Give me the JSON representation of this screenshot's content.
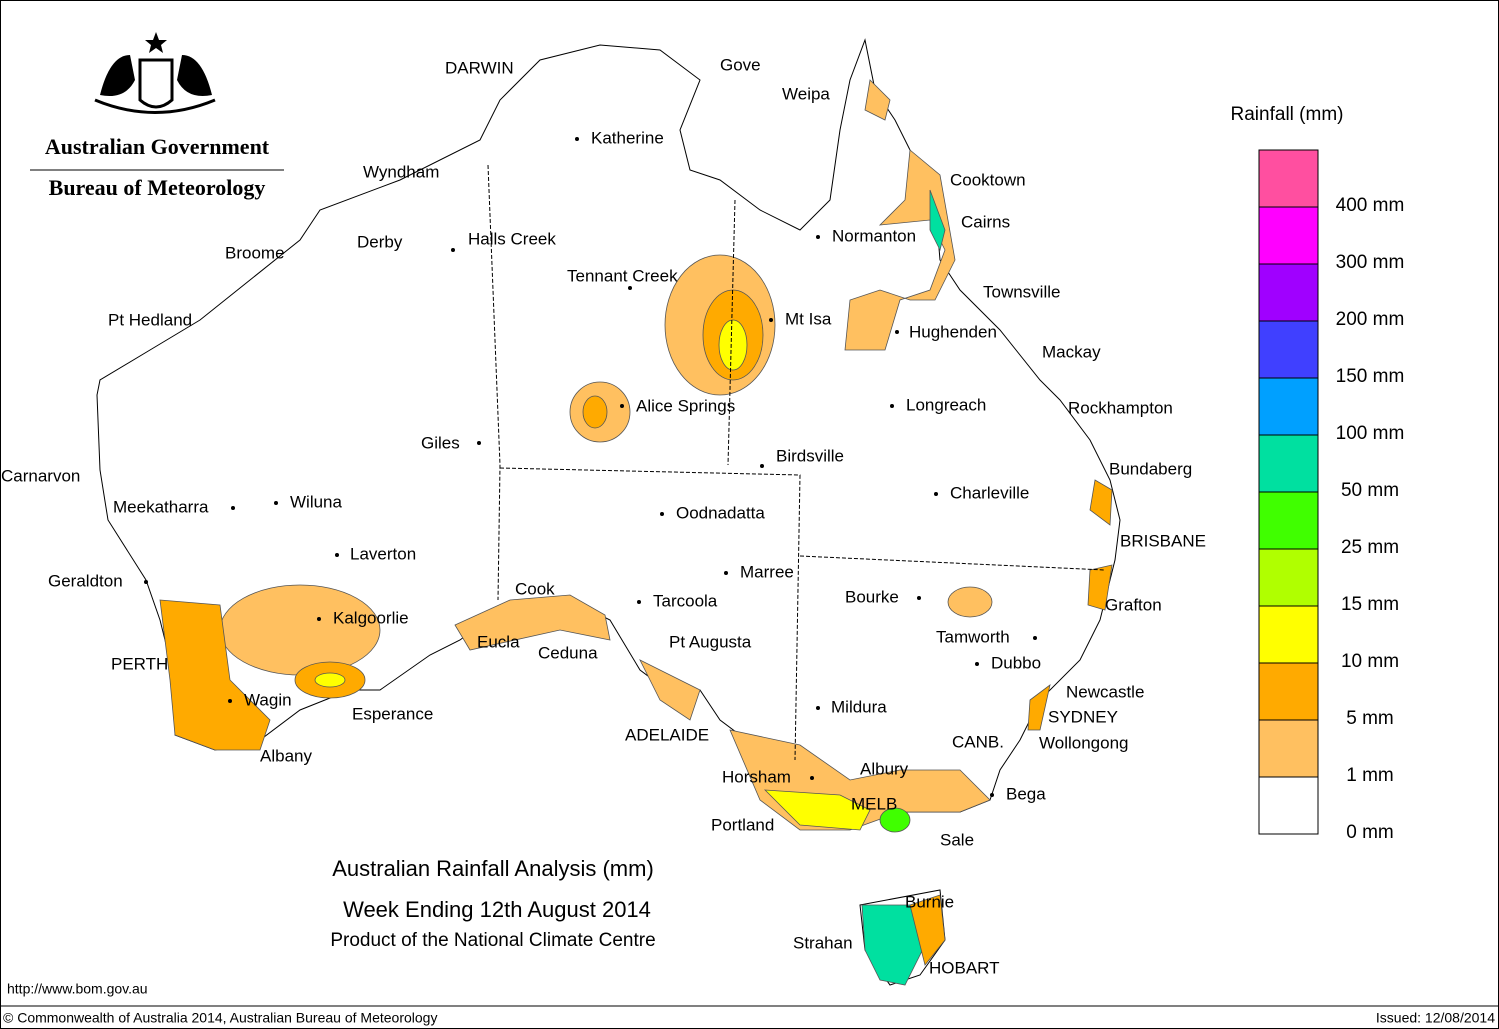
{
  "header": {
    "agency": "Australian Government",
    "bureau": "Bureau of Meteorology"
  },
  "title": {
    "line1": "Australian Rainfall Analysis (mm)",
    "line2": "Week Ending 12th August 2014",
    "line3": "Product of the National Climate Centre"
  },
  "legend": {
    "title": "Rainfall (mm)",
    "classes": [
      {
        "label": "400 mm",
        "color": "#ff4fa0"
      },
      {
        "label": "300 mm",
        "color": "#ff00ff"
      },
      {
        "label": "200 mm",
        "color": "#a000ff"
      },
      {
        "label": "150 mm",
        "color": "#4040ff"
      },
      {
        "label": "100 mm",
        "color": "#00a0ff"
      },
      {
        "label": "50 mm",
        "color": "#00e0a0"
      },
      {
        "label": "25 mm",
        "color": "#40ff00"
      },
      {
        "label": "15 mm",
        "color": "#b0ff00"
      },
      {
        "label": "10 mm",
        "color": "#ffff00"
      },
      {
        "label": "5 mm",
        "color": "#ffaa00"
      },
      {
        "label": "1 mm",
        "color": "#ffc060"
      },
      {
        "label": "0 mm",
        "color": "#ffffff"
      }
    ]
  },
  "places": [
    "DARWIN",
    "Gove",
    "Weipa",
    "Katherine",
    "Cooktown",
    "Wyndham",
    "Cairns",
    "Normanton",
    "Derby",
    "Halls Creek",
    "Broome",
    "Tennant Creek",
    "Townsville",
    "Pt Hedland",
    "Mt Isa",
    "Hughenden",
    "Mackay",
    "Alice Springs",
    "Longreach",
    "Rockhampton",
    "Giles",
    "Birdsville",
    "Bundaberg",
    "Carnarvon",
    "Charleville",
    "Meekatharra",
    "Wiluna",
    "Oodnadatta",
    "BRISBANE",
    "Laverton",
    "Marree",
    "Geraldton",
    "Cook",
    "Bourke",
    "Tarcoola",
    "Grafton",
    "Kalgoorlie",
    "Tamworth",
    "Pt Augusta",
    "Eucla",
    "Ceduna",
    "Dubbo",
    "PERTH",
    "Newcastle",
    "Wagin",
    "Mildura",
    "Esperance",
    "SYDNEY",
    "ADELAIDE",
    "Wollongong",
    "CANB.",
    "Albany",
    "Albury",
    "Horsham",
    "Bega",
    "MELB",
    "Portland",
    "Sale",
    "Burnie",
    "Strahan",
    "HOBART"
  ],
  "footer": {
    "url": "http://www.bom.gov.au",
    "copyright": "© Commonwealth of Australia 2014, Australian Bureau of Meteorology",
    "issued": "Issued: 12/08/2014"
  }
}
